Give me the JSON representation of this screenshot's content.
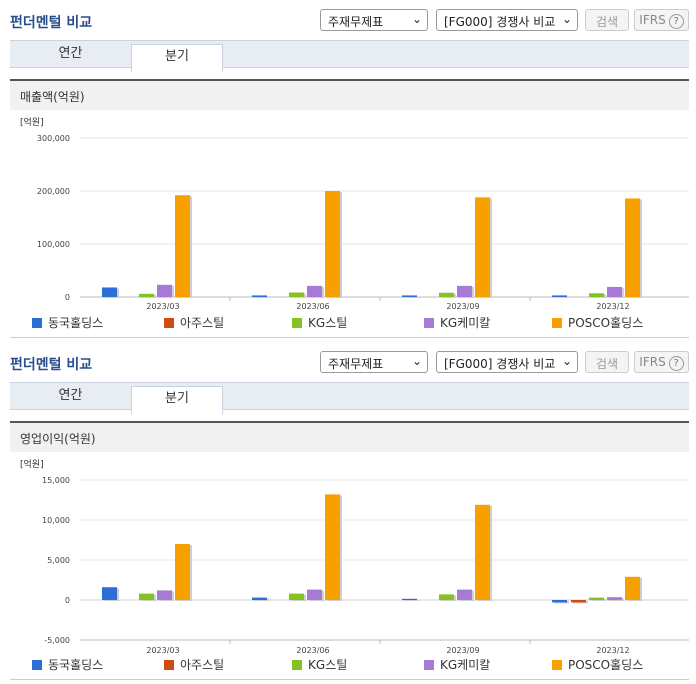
{
  "panels": [
    {
      "title": "펀더멘털 비교",
      "select1": "주재무제표",
      "select2": "[FG000] 경쟁사 비교",
      "search": "검색",
      "ifrs": "IFRS",
      "help": "?",
      "tabs": [
        "연간",
        "분기"
      ],
      "chart_title": "매출액(억원)"
    },
    {
      "title": "펀더멘털 비교",
      "select1": "주재무제표",
      "select2": "[FG000] 경쟁사 비교",
      "search": "검색",
      "ifrs": "IFRS",
      "help": "?",
      "tabs": [
        "연간",
        "분기"
      ],
      "chart_title": "영업이익(억원)"
    }
  ],
  "colors": {
    "동국홀딩스": "#2b6fd6",
    "아주스틸": "#d04a12",
    "KG스틸": "#86c21f",
    "KG케미칼": "#a67ad6",
    "POSCO홀딩스": "#f8a000"
  },
  "chart_data": [
    {
      "type": "bar",
      "unit": "[억원]",
      "categories": [
        "2023/03",
        "2023/06",
        "2023/09",
        "2023/12"
      ],
      "ylim": [
        0,
        300000
      ],
      "yticks": [
        "0",
        "100,000",
        "200,000",
        "300,000"
      ],
      "ytick_values": [
        0,
        100000,
        200000,
        300000
      ],
      "series": [
        {
          "name": "동국홀딩스",
          "values": [
            18000,
            3000,
            3000,
            3000
          ]
        },
        {
          "name": "아주스틸",
          "values": [
            0,
            0,
            0,
            0
          ]
        },
        {
          "name": "KG스틸",
          "values": [
            6000,
            8500,
            8000,
            7000
          ]
        },
        {
          "name": "KG케미칼",
          "values": [
            23000,
            21000,
            21000,
            19000
          ]
        },
        {
          "name": "POSCO홀딩스",
          "values": [
            192000,
            200000,
            188000,
            186000
          ]
        }
      ]
    },
    {
      "type": "bar",
      "unit": "[억원]",
      "categories": [
        "2023/03",
        "2023/06",
        "2023/09",
        "2023/12"
      ],
      "ylim": [
        -5000,
        15000
      ],
      "yticks": [
        "-5,000",
        "0",
        "5,000",
        "10,000",
        "15,000"
      ],
      "ytick_values": [
        -5000,
        0,
        5000,
        10000,
        15000
      ],
      "series": [
        {
          "name": "동국홀딩스",
          "values": [
            1600,
            300,
            150,
            -300
          ]
        },
        {
          "name": "아주스틸",
          "values": [
            0,
            0,
            0,
            -300
          ]
        },
        {
          "name": "KG스틸",
          "values": [
            800,
            800,
            700,
            300
          ]
        },
        {
          "name": "KG케미칼",
          "values": [
            1200,
            1300,
            1300,
            350
          ]
        },
        {
          "name": "POSCO홀딩스",
          "values": [
            7000,
            13200,
            11900,
            2900
          ]
        }
      ]
    }
  ]
}
